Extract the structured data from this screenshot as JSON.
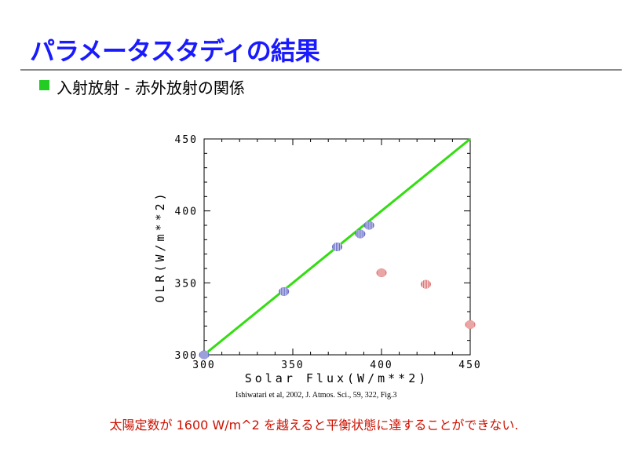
{
  "slide": {
    "title": "パラメータスタディの結果",
    "bullet": "入射放射 - 赤外放射の関係",
    "citation": "Ishiwatari et al, 2002, J. Atmos. Sci., 59, 322, Fig.3",
    "conclusion": "太陽定数が 1600 W/m^2 を越えると平衡状態に達することができない."
  },
  "colors": {
    "title": "#1a1aff",
    "bullet_square": "#22cc22",
    "conclusion": "#cc1100",
    "line": "#33dd11",
    "series_equilibrium": "#6a70c8",
    "series_non_equilibrium": "#e07878"
  },
  "chart_data": {
    "type": "scatter",
    "title": "",
    "xlabel": "Solar Flux(W/m**2)",
    "ylabel": "OLR(W/m**2)",
    "xlim": [
      300,
      450
    ],
    "ylim": [
      300,
      450
    ],
    "xticks": [
      "300",
      "350",
      "400",
      "450"
    ],
    "yticks": [
      "300",
      "350",
      "400",
      "450"
    ],
    "grid": false,
    "legend": "none",
    "line": {
      "x": [
        300,
        450
      ],
      "y": [
        300,
        450
      ]
    },
    "series": [
      {
        "color": "blue",
        "x": [
          300,
          345,
          375,
          388,
          393
        ],
        "y": [
          300,
          344,
          375,
          384,
          390
        ]
      },
      {
        "color": "red",
        "x": [
          400,
          425,
          450
        ],
        "y": [
          357,
          349,
          321
        ]
      }
    ]
  }
}
